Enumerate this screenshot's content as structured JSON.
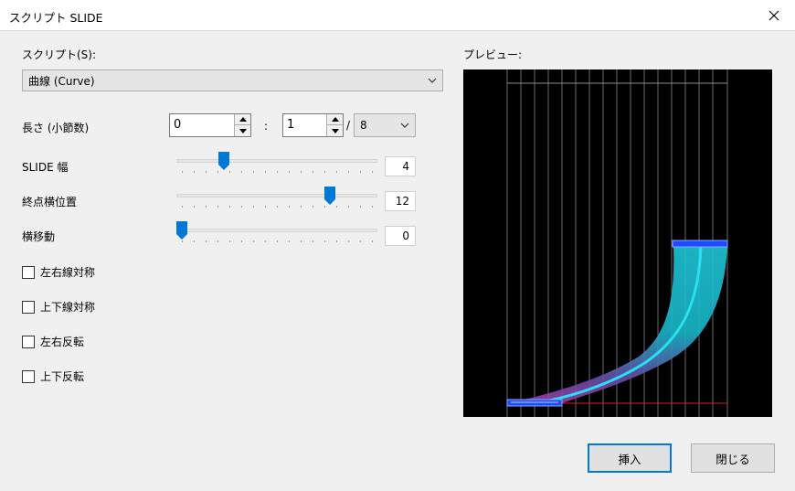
{
  "window": {
    "title": "スクリプト SLIDE"
  },
  "script": {
    "label": "スクリプト(S):",
    "selected": "曲線 (Curve)"
  },
  "length": {
    "label": "長さ (小節数)",
    "measures": "0",
    "separator": ":",
    "numerator": "1",
    "slash": "/",
    "denominator": "8"
  },
  "slide_width": {
    "label": "SLIDE 幅",
    "value": "4",
    "position": 0.22
  },
  "end_position": {
    "label": "終点横位置",
    "value": "12",
    "position": 0.78
  },
  "lateral_move": {
    "label": "横移動",
    "value": "0",
    "position": 0.0
  },
  "checkboxes": [
    {
      "label": "左右線対称",
      "checked": false
    },
    {
      "label": "上下線対称",
      "checked": false
    },
    {
      "label": "左右反転",
      "checked": false
    },
    {
      "label": "上下反転",
      "checked": false
    }
  ],
  "preview": {
    "label": "プレビュー:",
    "colors": {
      "background": "#000000",
      "note": "#1d4bff",
      "curve": "#29e0f0",
      "band_top": "#1fc6d8",
      "band_bottom": "#9b3fa8"
    }
  },
  "buttons": {
    "insert": "挿入",
    "close": "閉じる"
  },
  "colors": {
    "accent": "#0078d7"
  }
}
